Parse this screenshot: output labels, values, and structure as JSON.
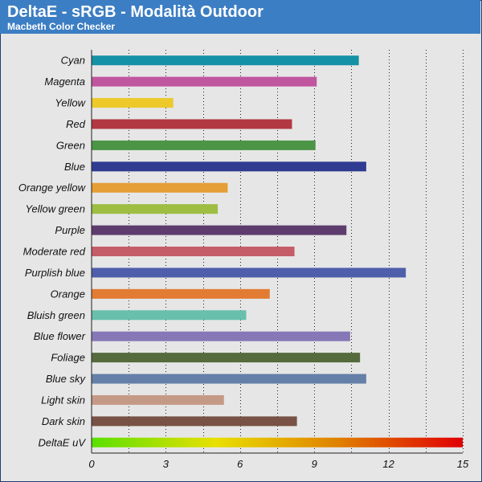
{
  "header": {
    "title": "DeltaE - sRGB - Modalità Outdoor",
    "subtitle": "Macbeth Color Checker"
  },
  "chart_data": {
    "type": "bar",
    "orientation": "horizontal",
    "title": "DeltaE - sRGB - Modalità Outdoor",
    "subtitle": "Macbeth Color Checker",
    "xlabel": "",
    "ylabel": "",
    "xlim": [
      0,
      15
    ],
    "xticks": [
      0,
      3,
      6,
      9,
      12,
      15
    ],
    "grid": "vertical dotted",
    "categories": [
      "Cyan",
      "Magenta",
      "Yellow",
      "Red",
      "Green",
      "Blue",
      "Orange yellow",
      "Yellow green",
      "Purple",
      "Moderate red",
      "Purplish blue",
      "Orange",
      "Bluish green",
      "Blue flower",
      "Foliage",
      "Blue sky",
      "Light skin",
      "Dark skin",
      "DeltaE uV"
    ],
    "values": [
      10.8,
      9.1,
      3.3,
      8.1,
      9.05,
      11.1,
      5.5,
      5.1,
      10.3,
      8.2,
      12.7,
      7.2,
      6.25,
      10.45,
      10.85,
      11.1,
      5.35,
      8.3,
      15
    ],
    "colors": [
      "#1591a6",
      "#c0569e",
      "#edc92a",
      "#b23842",
      "#4c9446",
      "#303b92",
      "#e59e35",
      "#9dbd43",
      "#5e3c6e",
      "#c55d68",
      "#4e5eab",
      "#e27b33",
      "#67bfac",
      "#8678b6",
      "#556b3d",
      "#6580a8",
      "#c49a86",
      "#775245",
      "gradient"
    ],
    "gradient_stops": [
      "#59e000",
      "#e8e000",
      "#e08000",
      "#e00000"
    ]
  }
}
